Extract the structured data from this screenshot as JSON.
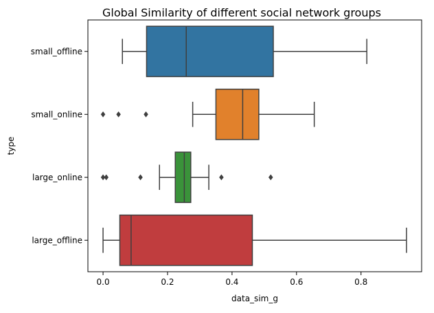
{
  "chart_data": {
    "type": "box",
    "orientation": "horizontal",
    "title": "Global Similarity of different social network groups",
    "xlabel": "data_sim_g",
    "ylabel": "type",
    "xlim": [
      -0.047,
      0.988
    ],
    "xticks": [
      0.0,
      0.2,
      0.4,
      0.6,
      0.8
    ],
    "xtick_labels": [
      "0.0",
      "0.2",
      "0.4",
      "0.6",
      "0.8"
    ],
    "grid": false,
    "legend": false,
    "categories": [
      "small_offline",
      "small_online",
      "large_online",
      "large_offline"
    ],
    "boxes": [
      {
        "category": "small_offline",
        "whisker_low": 0.06,
        "q1": 0.135,
        "median": 0.258,
        "q3": 0.528,
        "whisker_high": 0.818,
        "outliers": [],
        "color": "#3274a1"
      },
      {
        "category": "small_online",
        "whisker_low": 0.278,
        "q1": 0.35,
        "median": 0.433,
        "q3": 0.483,
        "whisker_high": 0.655,
        "outliers": [
          0.0,
          0.048,
          0.133
        ],
        "color": "#e1812c"
      },
      {
        "category": "large_online",
        "whisker_low": 0.175,
        "q1": 0.224,
        "median": 0.252,
        "q3": 0.272,
        "whisker_high": 0.328,
        "outliers": [
          0.0,
          0.01,
          0.116,
          0.367,
          0.52
        ],
        "color": "#3a923a"
      },
      {
        "category": "large_offline",
        "whisker_low": 0.0,
        "q1": 0.052,
        "median": 0.087,
        "q3": 0.463,
        "whisker_high": 0.941,
        "outliers": [],
        "color": "#c03d3e"
      }
    ]
  }
}
